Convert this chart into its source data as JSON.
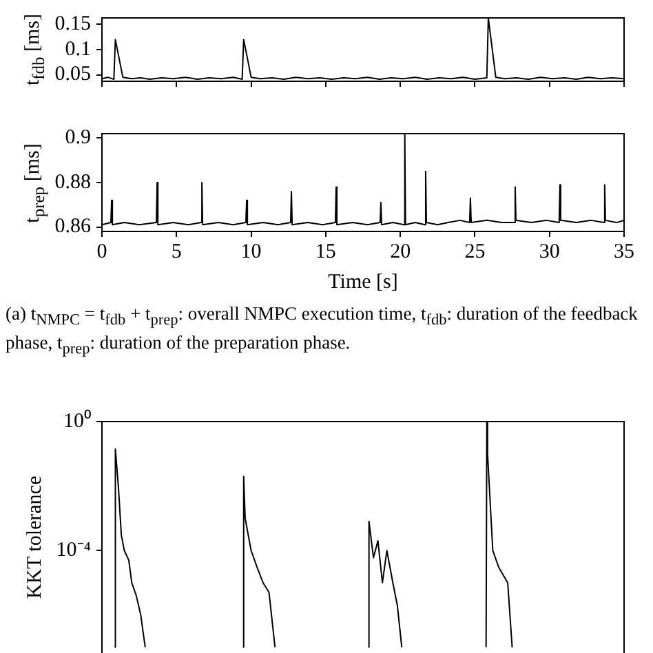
{
  "chart_data": [
    {
      "type": "line",
      "ylabel": "t$_{fdb}$ [ms]",
      "xlim": [
        0,
        35
      ],
      "xticks": [
        0,
        5,
        10,
        15,
        20,
        25,
        30,
        35
      ],
      "ylim": [
        0.037,
        0.163
      ],
      "yticks": [
        0.05,
        0.1,
        0.15
      ],
      "tick_labels": "y",
      "grid": false,
      "legend": false,
      "marker": "none",
      "line_style": "solid",
      "series": [
        {
          "color": "#000000",
          "x": [
            0,
            0.4,
            0.8,
            0.9,
            1.4,
            2,
            2.6,
            3.2,
            4,
            4.8,
            5.6,
            6.4,
            7.2,
            8,
            8.8,
            9.4,
            9.5,
            10,
            10.6,
            11.4,
            12.2,
            13,
            13.8,
            14.6,
            15.4,
            16.2,
            17,
            17.8,
            18.6,
            19.4,
            20.2,
            21,
            21.8,
            22.6,
            23.4,
            24.2,
            25,
            25.8,
            25.9,
            26.4,
            27,
            27.8,
            28.6,
            29.4,
            30.2,
            31,
            31.8,
            32.6,
            33.4,
            34.2,
            35
          ],
          "values": [
            0.042,
            0.045,
            0.041,
            0.12,
            0.045,
            0.042,
            0.044,
            0.041,
            0.044,
            0.042,
            0.045,
            0.041,
            0.044,
            0.042,
            0.045,
            0.041,
            0.12,
            0.045,
            0.042,
            0.044,
            0.041,
            0.045,
            0.042,
            0.044,
            0.041,
            0.044,
            0.042,
            0.045,
            0.041,
            0.044,
            0.042,
            0.045,
            0.041,
            0.044,
            0.042,
            0.045,
            0.041,
            0.044,
            0.163,
            0.045,
            0.042,
            0.044,
            0.041,
            0.045,
            0.042,
            0.044,
            0.041,
            0.045,
            0.042,
            0.044,
            0.042
          ]
        }
      ]
    },
    {
      "type": "line",
      "ylabel": "t$_{prep}$ [ms]",
      "xlabel": "Time [s]",
      "xlim": [
        0,
        35
      ],
      "xticks": [
        0,
        5,
        10,
        15,
        20,
        25,
        30,
        35
      ],
      "ylim": [
        0.858,
        0.902
      ],
      "yticks": [
        0.86,
        0.88,
        0.9
      ],
      "grid": false,
      "legend": false,
      "marker": "none",
      "line_style": "solid",
      "annotations": [
        "(a) t$_{NMPC}$ = t$_{fdb}$ + t$_{prep}$: overall NMPC execution time, t$_{fdb}$: duration of the feedback phase, t$_{prep}$: duration of the preparation phase."
      ],
      "series": [
        {
          "color": "#000000",
          "x": [
            0,
            0.6,
            0.65,
            0.7,
            1.5,
            2.5,
            3.65,
            3.7,
            3.75,
            4.8,
            5.8,
            6.65,
            6.7,
            6.75,
            7.8,
            8.8,
            9.65,
            9.7,
            9.75,
            10.8,
            11.8,
            12.65,
            12.7,
            12.75,
            13.8,
            14.8,
            15.65,
            15.7,
            15.75,
            16.8,
            17.8,
            18.65,
            18.7,
            18.75,
            19.5,
            20.25,
            20.3,
            20.35,
            21,
            21.65,
            21.7,
            21.75,
            22.5,
            23.2,
            24,
            24.65,
            24.7,
            24.75,
            25.8,
            26.8,
            27.65,
            27.7,
            27.75,
            28.8,
            29.8,
            30.65,
            30.7,
            30.75,
            31.8,
            32.8,
            33.65,
            33.7,
            33.75,
            34.5,
            35
          ],
          "values": [
            0.861,
            0.862,
            0.872,
            0.861,
            0.862,
            0.861,
            0.862,
            0.88,
            0.861,
            0.862,
            0.861,
            0.862,
            0.88,
            0.861,
            0.862,
            0.861,
            0.862,
            0.872,
            0.861,
            0.862,
            0.861,
            0.862,
            0.876,
            0.861,
            0.862,
            0.861,
            0.862,
            0.878,
            0.861,
            0.862,
            0.861,
            0.862,
            0.871,
            0.861,
            0.862,
            0.861,
            0.902,
            0.861,
            0.862,
            0.861,
            0.885,
            0.862,
            0.861,
            0.862,
            0.863,
            0.862,
            0.873,
            0.862,
            0.863,
            0.862,
            0.862,
            0.878,
            0.863,
            0.862,
            0.863,
            0.862,
            0.879,
            0.863,
            0.862,
            0.863,
            0.862,
            0.879,
            0.863,
            0.862,
            0.863
          ]
        }
      ]
    },
    {
      "type": "line",
      "ylabel": "KKT tolerance",
      "xlim": [
        0,
        35
      ],
      "xticks": [
        0,
        5,
        10,
        15,
        20,
        25,
        30,
        35
      ],
      "ylim": [
        6e-08,
        1
      ],
      "yticks": [
        {
          "value": 1,
          "label": "10⁰"
        },
        {
          "value": 0.0001,
          "label": "10⁻⁴"
        }
      ],
      "log": "y",
      "tick_labels": "y",
      "grid": false,
      "legend": false,
      "marker": "none",
      "line_style": "solid",
      "series": [
        {
          "color": "#000000",
          "x": [
            0.85,
            0.9,
            1.1,
            1.3,
            1.5,
            1.8,
            2.0,
            2.3,
            2.6,
            2.9,
            5,
            9.45,
            9.5,
            9.6,
            10.0,
            10.4,
            10.8,
            11.2,
            11.6,
            15,
            17.85,
            17.9,
            18.2,
            18.5,
            18.8,
            19.1,
            19.5,
            19.8,
            20.1,
            23,
            25.75,
            25.8,
            25.85,
            26.2,
            26.6,
            27.2,
            27.5
          ],
          "values": [
            1e-07,
            0.14,
            0.01,
            0.0003,
            0.0001,
            5e-05,
            1e-05,
            4e-06,
            1e-06,
            1e-07,
            null,
            1e-07,
            0.02,
            0.001,
            0.0001,
            3e-05,
            1e-05,
            5e-06,
            1e-07,
            null,
            1e-07,
            0.0008,
            6e-05,
            0.0002,
            1e-05,
            0.0001,
            1e-05,
            2e-06,
            1e-07,
            null,
            1e-07,
            1,
            0.1,
            0.0001,
            3e-05,
            1e-05,
            1e-07
          ]
        }
      ]
    }
  ]
}
